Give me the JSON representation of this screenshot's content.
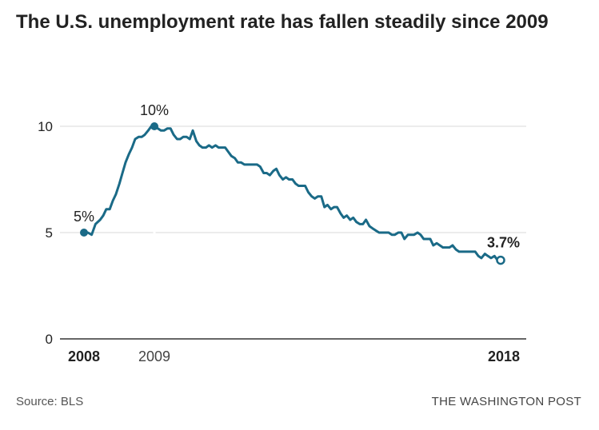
{
  "title": "The U.S. unemployment rate has fallen steadily since 2009",
  "source": "Source: BLS",
  "credit": "THE WASHINGTON POST",
  "colors": {
    "line": "#1a6a87",
    "grid": "#d9d9d9",
    "text": "#222222",
    "muted": "#555555"
  },
  "chart_data": {
    "type": "line",
    "title": "The U.S. unemployment rate has fallen steadily since 2009",
    "xlabel": "",
    "ylabel": "",
    "ylim": [
      0,
      10
    ],
    "xlim": [
      2008.0,
      2018.83
    ],
    "grid": true,
    "y_ticks": [
      {
        "value": 0,
        "label": "0"
      },
      {
        "value": 5,
        "label": "5"
      },
      {
        "value": 10,
        "label": "10"
      }
    ],
    "x_ticks": [
      {
        "value": 2008.0,
        "label": "2008",
        "bold": true
      },
      {
        "value": 2009.83,
        "label": "2009",
        "bold": false
      },
      {
        "value": 2018.83,
        "label": "2018",
        "bold": true
      }
    ],
    "series": [
      {
        "x": [
          2008.0,
          2008.1,
          2008.2,
          2008.3,
          2008.42,
          2008.5,
          2008.58,
          2008.67,
          2008.75,
          2008.83,
          2008.92,
          2009.0,
          2009.08,
          2009.17,
          2009.25,
          2009.33,
          2009.42,
          2009.5,
          2009.58,
          2009.67,
          2009.75,
          2009.83,
          2009.92,
          2010.0,
          2010.08,
          2010.17,
          2010.25,
          2010.33,
          2010.42,
          2010.5,
          2010.58,
          2010.67,
          2010.75,
          2010.83,
          2010.92,
          2011.0,
          2011.08,
          2011.17,
          2011.25,
          2011.33,
          2011.42,
          2011.5,
          2011.58,
          2011.67,
          2011.75,
          2011.83,
          2011.92,
          2012.0,
          2012.08,
          2012.17,
          2012.25,
          2012.33,
          2012.42,
          2012.5,
          2012.58,
          2012.67,
          2012.75,
          2012.83,
          2012.92,
          2013.0,
          2013.08,
          2013.17,
          2013.25,
          2013.33,
          2013.42,
          2013.5,
          2013.58,
          2013.67,
          2013.75,
          2013.83,
          2013.92,
          2014.0,
          2014.08,
          2014.17,
          2014.25,
          2014.33,
          2014.42,
          2014.5,
          2014.58,
          2014.67,
          2014.75,
          2014.83,
          2014.92,
          2015.0,
          2015.08,
          2015.17,
          2015.25,
          2015.33,
          2015.42,
          2015.5,
          2015.58,
          2015.67,
          2015.75,
          2015.83,
          2015.92,
          2016.0,
          2016.08,
          2016.17,
          2016.25,
          2016.33,
          2016.42,
          2016.5,
          2016.58,
          2016.67,
          2016.75,
          2016.83,
          2016.92,
          2017.0,
          2017.08,
          2017.17,
          2017.25,
          2017.33,
          2017.42,
          2017.5,
          2017.58,
          2017.67,
          2017.75,
          2017.83,
          2017.92,
          2018.0,
          2018.08,
          2018.17,
          2018.25,
          2018.33,
          2018.42,
          2018.5,
          2018.58,
          2018.67,
          2018.75,
          2018.83
        ],
        "y": [
          5.0,
          5.0,
          4.9,
          5.4,
          5.6,
          5.8,
          6.1,
          6.1,
          6.5,
          6.8,
          7.3,
          7.8,
          8.3,
          8.7,
          9.0,
          9.4,
          9.5,
          9.5,
          9.6,
          9.8,
          10.0,
          10.0,
          9.9,
          9.8,
          9.8,
          9.9,
          9.9,
          9.6,
          9.4,
          9.4,
          9.5,
          9.5,
          9.4,
          9.8,
          9.3,
          9.1,
          9.0,
          9.0,
          9.1,
          9.0,
          9.1,
          9.0,
          9.0,
          9.0,
          8.8,
          8.6,
          8.5,
          8.3,
          8.3,
          8.2,
          8.2,
          8.2,
          8.2,
          8.2,
          8.1,
          7.8,
          7.8,
          7.7,
          7.9,
          8.0,
          7.7,
          7.5,
          7.6,
          7.5,
          7.5,
          7.3,
          7.2,
          7.2,
          7.2,
          6.9,
          6.7,
          6.6,
          6.7,
          6.7,
          6.2,
          6.3,
          6.1,
          6.2,
          6.2,
          5.9,
          5.7,
          5.8,
          5.6,
          5.7,
          5.5,
          5.4,
          5.4,
          5.6,
          5.3,
          5.2,
          5.1,
          5.0,
          5.0,
          5.0,
          5.0,
          4.9,
          4.9,
          5.0,
          5.0,
          4.7,
          4.9,
          4.9,
          4.9,
          5.0,
          4.9,
          4.7,
          4.7,
          4.7,
          4.4,
          4.5,
          4.4,
          4.3,
          4.3,
          4.3,
          4.4,
          4.2,
          4.1,
          4.1,
          4.1,
          4.1,
          4.1,
          4.1,
          3.9,
          3.8,
          4.0,
          3.9,
          3.8,
          3.9,
          3.7,
          3.7
        ]
      }
    ],
    "annotations": [
      {
        "x": 2008.0,
        "y": 5.0,
        "label": "5%",
        "bold": false,
        "marker": "filled"
      },
      {
        "x": 2009.83,
        "y": 10.0,
        "label": "10%",
        "bold": false,
        "marker": "filled"
      },
      {
        "x": 2018.83,
        "y": 3.7,
        "label": "3.7%",
        "bold": true,
        "marker": "open"
      }
    ]
  }
}
